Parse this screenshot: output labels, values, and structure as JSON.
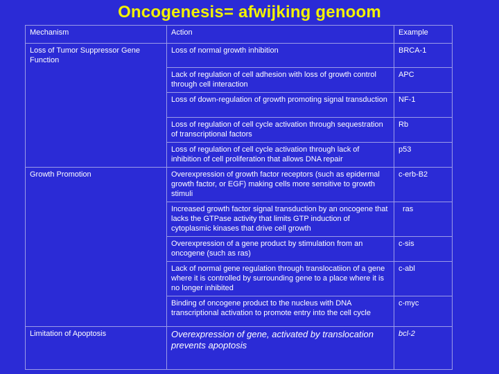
{
  "title": "Oncogenesis= afwijking genoom",
  "headers": {
    "mechanism": "Mechanism",
    "action": "Action",
    "example": "Example"
  },
  "groups": {
    "tumor_suppressor": "Loss of Tumor Suppressor Gene Function",
    "growth_promotion": "Growth Promotion",
    "apoptosis": "Limitation of Apoptosis"
  },
  "rows": [
    {
      "action": "Loss of normal growth inhibition",
      "example": "BRCA-1"
    },
    {
      "action": "Lack of regulation of cell adhesion with loss of growth control through cell interaction",
      "example": "APC"
    },
    {
      "action": "Loss of down-regulation of growth promoting signal transduction",
      "example": "NF-1"
    },
    {
      "action": "Loss of regulation of cell cycle activation through sequestration of transcriptional factors",
      "example": "Rb"
    },
    {
      "action": "Loss of regulation of cell cycle activation through lack of inhibition of cell proliferation that allows DNA repair",
      "example": "p53"
    },
    {
      "action": "Overexpression of growth factor receptors (such as epidermal growth factor, or EGF) making cells more sensitive to growth stimuli",
      "example": "c-erb-B2"
    },
    {
      "action": "Increased growth factor signal transduction by an oncogene that lacks the GTPase activity that limits GTP induction of cytoplasmic kinases that drive cell growth",
      "example": "ras"
    },
    {
      "action": "Overexpression of a gene product by stimulation from an oncogene (such as ras)",
      "example": "c-sis"
    },
    {
      "action": "Lack of normal gene regulation through translocatiion of a gene where it is controlled by surrounding gene to a place where it is no longer inhibited",
      "example": "c-abl"
    },
    {
      "action": "Binding of oncogene product to the nucleus with DNA transcriptional activation to promote entry into the cell cycle",
      "example": "c-myc"
    },
    {
      "action": "Overexpression of gene, activated by translocation prevents apoptosis",
      "example": "bcl-2"
    }
  ],
  "colors": {
    "background": "#2b2bd6",
    "title": "#f2f200",
    "border": "#9c9ce8",
    "text": "#ffffff"
  }
}
